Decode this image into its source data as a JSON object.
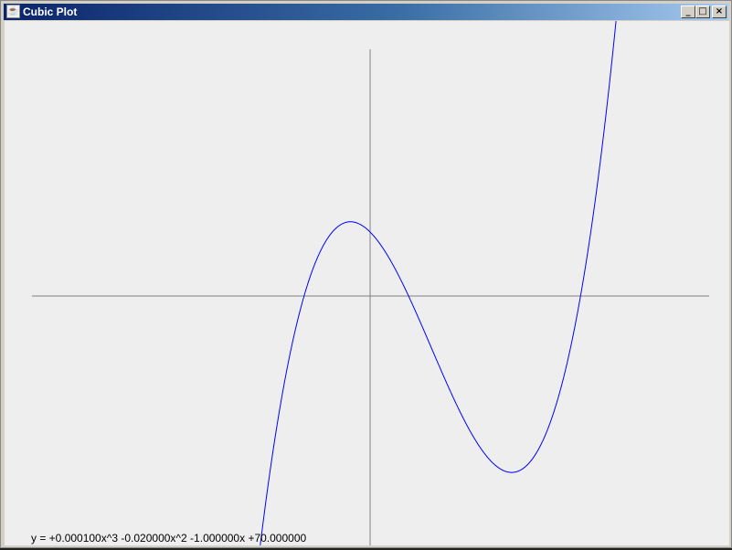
{
  "window": {
    "title": "Cubic Plot",
    "icon": "java-cup-icon",
    "buttons": {
      "minimize": "_",
      "maximize": "□",
      "close": "×"
    }
  },
  "chart_data": {
    "type": "line",
    "coefficients": {
      "a": 0.0001,
      "b": -0.02,
      "c": -1.0,
      "d": 70.0
    },
    "xlim": [
      -370,
      371
    ],
    "ylim": [
      -270,
      270
    ],
    "line_color": "#0000ff",
    "axis_color": "#808080",
    "grid": false
  },
  "equation_label": "y = +0.000100x^3 -0.020000x^2 -1.000000x +70.000000"
}
